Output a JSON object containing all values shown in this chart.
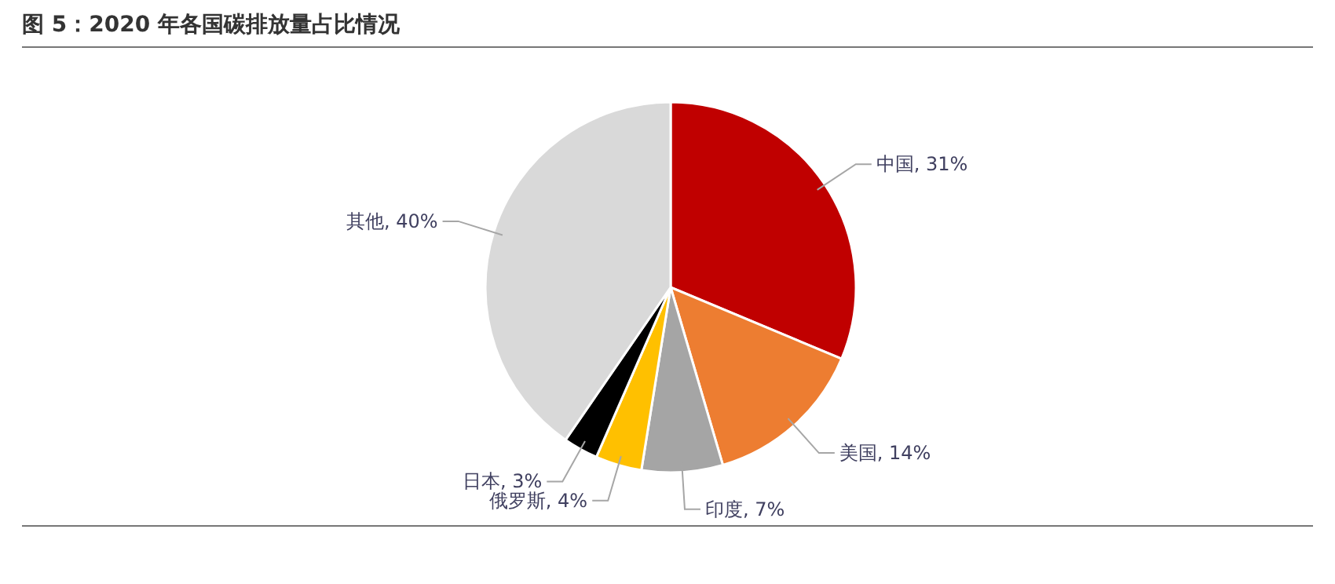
{
  "chart_data": {
    "type": "pie",
    "title": "图 5：2020 年各国碳排放量占比情况",
    "categories": [
      "中国",
      "美国",
      "印度",
      "俄罗斯",
      "日本",
      "其他"
    ],
    "values": [
      31,
      14,
      7,
      4,
      3,
      40
    ],
    "colors": [
      "#c00000",
      "#ed7d31",
      "#a5a5a5",
      "#ffc000",
      "#000000",
      "#d9d9d9"
    ],
    "value_labels": [
      "31%",
      "14%",
      "7%",
      "4%",
      "3%",
      "40%"
    ]
  }
}
